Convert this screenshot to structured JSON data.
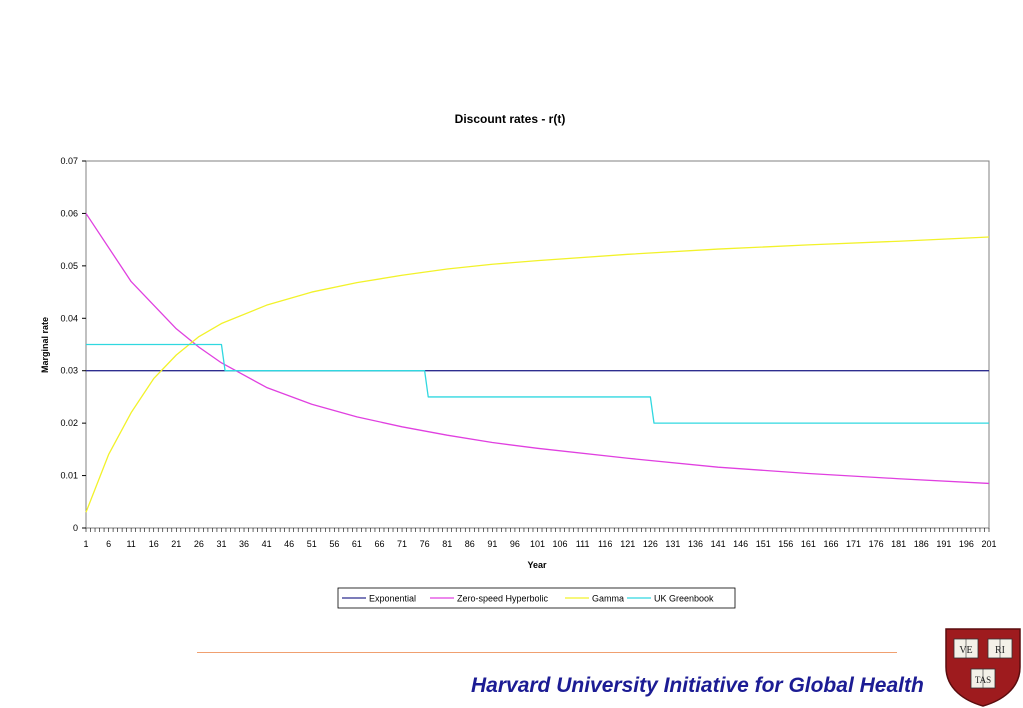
{
  "chart_data": {
    "type": "line",
    "title": "Discount rates - r(t)",
    "xlabel": "Year",
    "ylabel": "Marginal rate",
    "x_range": [
      1,
      201
    ],
    "x_tick_labels": [
      "1",
      "6",
      "11",
      "16",
      "21",
      "26",
      "31",
      "36",
      "41",
      "46",
      "51",
      "56",
      "61",
      "66",
      "71",
      "76",
      "81",
      "86",
      "91",
      "96",
      "101",
      "106",
      "111",
      "116",
      "121",
      "126",
      "131",
      "136",
      "141",
      "146",
      "151",
      "156",
      "161",
      "166",
      "171",
      "176",
      "181",
      "186",
      "191",
      "196",
      "201"
    ],
    "ylim": [
      0,
      0.07
    ],
    "y_tick_labels": [
      "0",
      "0.01",
      "0.02",
      "0.03",
      "0.04",
      "0.05",
      "0.06",
      "0.07"
    ],
    "grid": false,
    "legend_position": "bottom",
    "series": [
      {
        "name": "Exponential",
        "color": "#2e2e8f",
        "x": [
          1,
          201
        ],
        "y": [
          0.03,
          0.03
        ]
      },
      {
        "name": "Zero-speed Hyperbolic",
        "color": "#e040e0",
        "x": [
          1,
          11,
          21,
          26,
          31,
          41,
          51,
          61,
          71,
          81,
          91,
          101,
          121,
          141,
          161,
          181,
          201
        ],
        "y": [
          0.06,
          0.047,
          0.038,
          0.0345,
          0.0315,
          0.0268,
          0.0236,
          0.0212,
          0.0193,
          0.0177,
          0.0163,
          0.0152,
          0.0133,
          0.0116,
          0.0104,
          0.0094,
          0.0085
        ]
      },
      {
        "name": "Gamma",
        "color": "#f2f22a",
        "x": [
          1,
          6,
          11,
          16,
          21,
          26,
          31,
          41,
          51,
          61,
          71,
          81,
          91,
          101,
          121,
          141,
          161,
          181,
          201
        ],
        "y": [
          0.003,
          0.014,
          0.022,
          0.0285,
          0.033,
          0.0365,
          0.039,
          0.0425,
          0.045,
          0.0468,
          0.0482,
          0.0494,
          0.0503,
          0.051,
          0.0522,
          0.0532,
          0.054,
          0.0547,
          0.0555
        ]
      },
      {
        "name": "UK Greenbook",
        "color": "#30d8e0",
        "x": [
          1,
          31,
          31.8,
          76,
          76.8,
          126,
          126.8,
          201
        ],
        "y": [
          0.035,
          0.035,
          0.03,
          0.03,
          0.025,
          0.025,
          0.02,
          0.02
        ]
      }
    ]
  },
  "footer": {
    "title": "Harvard University Initiative for Global Health",
    "rule_color": "#f0a070",
    "title_color": "#1c1c94"
  },
  "seal": {
    "cells": [
      "VE",
      "RI",
      "TAS"
    ],
    "shield_color": "#9e1b1e"
  }
}
